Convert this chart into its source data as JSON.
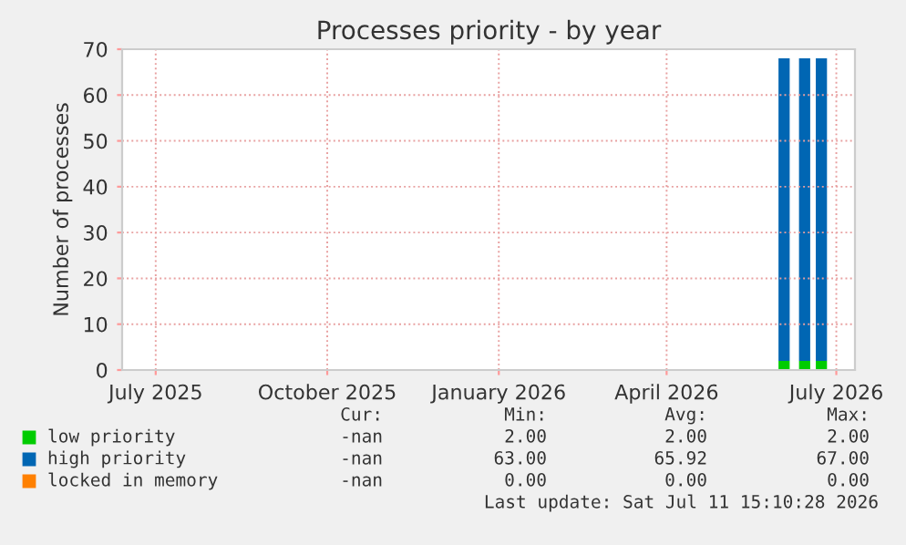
{
  "chart_data": {
    "type": "bar",
    "stacked": true,
    "title": "Processes priority - by year",
    "ylabel": "Number of processes",
    "x": [
      "2026-06-03",
      "2026-06-14",
      "2026-06-23"
    ],
    "series": [
      {
        "name": "low priority",
        "color": "#00cc00",
        "values": [
          2,
          2,
          2
        ]
      },
      {
        "name": "high priority",
        "color": "#0066b3",
        "values": [
          66,
          66,
          66
        ]
      },
      {
        "name": "locked in memory",
        "color": "#ff8000",
        "values": [
          0,
          0,
          0
        ]
      }
    ],
    "xlim": [
      "2025-06-13",
      "2026-07-11"
    ],
    "xticks": [
      {
        "value": "2025-07-01",
        "label": "July 2025"
      },
      {
        "value": "2025-10-01",
        "label": "October 2025"
      },
      {
        "value": "2026-01-01",
        "label": "January 2026"
      },
      {
        "value": "2026-04-01",
        "label": "April 2026"
      },
      {
        "value": "2026-07-01",
        "label": "July 2026"
      }
    ],
    "ylim": [
      0,
      70
    ],
    "yticks": [
      0,
      10,
      20,
      30,
      40,
      50,
      60,
      70
    ],
    "grid": true,
    "legend": "bottom",
    "annotations": [
      "Cur:",
      "Min:",
      "Avg:",
      "Max:",
      "-nan",
      "2.00",
      "2.00",
      "2.00",
      "-nan",
      "63.00",
      "65.92",
      "67.00",
      "-nan",
      "0.00",
      "0.00",
      "0.00",
      "Last update: Sat Jul 11 15:10:28 2026"
    ]
  }
}
